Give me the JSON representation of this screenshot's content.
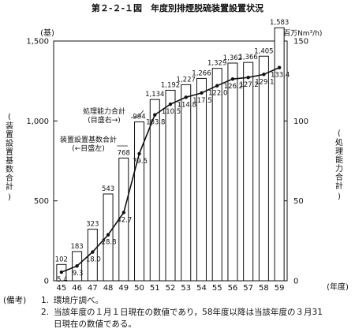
{
  "chart_data": {
    "type": "bar",
    "title": "第２-２-１図　年度別排煙脱硫装置設置状況",
    "categories": [
      "45",
      "46",
      "47",
      "48",
      "49",
      "50",
      "51",
      "52",
      "53",
      "54",
      "55",
      "56",
      "57",
      "58",
      "59"
    ],
    "x_unit": "(年度)",
    "left_axis": {
      "unit": "(基)",
      "label": "装置設置基数合計",
      "ticks": [
        "0",
        "500",
        "1,000",
        "1,500"
      ],
      "ylim": [
        0,
        1500
      ]
    },
    "right_axis": {
      "unit": "(百万Nm³/h)",
      "label": "処理能力合計",
      "ticks": [
        "0",
        "50",
        "100",
        "150"
      ],
      "ylim": [
        0,
        150
      ]
    },
    "series": [
      {
        "name": "装置設置基数合計",
        "legend_sub": "(←目盛左)",
        "type": "bar",
        "axis": "left",
        "values": [
          102,
          183,
          323,
          543,
          768,
          994,
          1134,
          1192,
          1227,
          1266,
          1329,
          1362,
          1366,
          1405,
          1583
        ],
        "labels": [
          "102",
          "183",
          "323",
          "543",
          "768",
          "994",
          "1,134",
          "1,192",
          "1,227",
          "1,266",
          "1,329",
          "1,362",
          "1,366",
          "1,405",
          "1,583"
        ]
      },
      {
        "name": "処理能力合計",
        "legend_sub": "(目盛右→)",
        "type": "line",
        "axis": "right",
        "values": [
          5.4,
          9.3,
          18.0,
          28.8,
          42.7,
          79.5,
          103.8,
          110.5,
          114.8,
          117.5,
          122.0,
          126.2,
          127.2,
          129.1,
          133.4
        ],
        "labels": [
          "5.4",
          "9.3",
          "18.0",
          "28.8",
          "42.7",
          "79.5",
          "103.8",
          "110.5",
          "114.8",
          "117.5",
          "122.0",
          "126.2",
          "127.2",
          "129.1",
          "133.4"
        ]
      }
    ]
  },
  "notes": {
    "label": "(備考)",
    "items": [
      {
        "num": "1.",
        "text": "環境庁調べ。"
      },
      {
        "num": "2.",
        "text": "当該年度の１月１日現在の数値であり，58年度以降は当該年度の３月31",
        "cont": "日現在の数値である。"
      }
    ]
  }
}
